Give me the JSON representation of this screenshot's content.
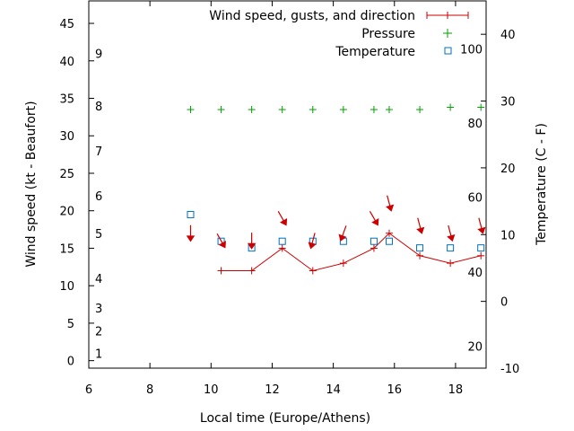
{
  "chart_data": {
    "type": "line",
    "xlabel": "Local time (Europe/Athens)",
    "ylabel": "Wind speed (kt - Beaufort)",
    "y2label": "Temperature (C - F)",
    "xlim": [
      6,
      19
    ],
    "ylim": [
      -1,
      48
    ],
    "y2lim": [
      -10,
      45
    ],
    "x_ticks": [
      "6",
      "8",
      "10",
      "12",
      "14",
      "16",
      "18"
    ],
    "y_ticks": [
      "0",
      "5",
      "10",
      "15",
      "20",
      "25",
      "30",
      "35",
      "40",
      "45"
    ],
    "y2_ticks": [
      "-10",
      "0",
      "10",
      "20",
      "30",
      "40"
    ],
    "beaufort_ticks": [
      {
        "label": "1",
        "at": 1
      },
      {
        "label": "2",
        "at": 4
      },
      {
        "label": "3",
        "at": 7
      },
      {
        "label": "4",
        "at": 11
      },
      {
        "label": "5",
        "at": 17
      },
      {
        "label": "6",
        "at": 22
      },
      {
        "label": "7",
        "at": 28
      },
      {
        "label": "8",
        "at": 34
      },
      {
        "label": "9",
        "at": 41
      }
    ],
    "fahrenheit_ticks": [
      {
        "label": "20",
        "at": -6.7
      },
      {
        "label": "40",
        "at": 4.4
      },
      {
        "label": "60",
        "at": 15.6
      },
      {
        "label": "80",
        "at": 26.7
      },
      {
        "label": "100",
        "at": 37.8
      }
    ],
    "legend_position": "top-right",
    "series": [
      {
        "name": "Wind speed, gusts, and direction",
        "axis": "y",
        "color": "#cc0000",
        "x": [
          10.33,
          11.33,
          12.33,
          13.33,
          14.33,
          15.33,
          15.83,
          16.83,
          17.83,
          18.83
        ],
        "values": [
          12,
          12,
          15,
          12,
          13,
          15,
          17,
          14,
          13,
          14
        ]
      },
      {
        "name": "Pressure",
        "axis": "y",
        "color": "#00a000",
        "x": [
          9.33,
          10.33,
          11.33,
          12.33,
          13.33,
          14.33,
          15.33,
          15.83,
          16.83,
          17.83,
          18.83
        ],
        "values": [
          33.5,
          33.5,
          33.5,
          33.5,
          33.5,
          33.5,
          33.5,
          33.5,
          33.5,
          33.8,
          33.8
        ]
      },
      {
        "name": "Temperature",
        "axis": "y2",
        "color": "#0070c0",
        "x": [
          9.33,
          10.33,
          11.33,
          12.33,
          13.33,
          14.33,
          15.33,
          15.83,
          16.83,
          17.83,
          18.83
        ],
        "values": [
          13,
          9,
          8,
          9,
          9,
          9,
          9,
          9,
          8,
          8,
          8
        ]
      }
    ],
    "wind_arrows": {
      "color": "#cc0000",
      "x": [
        9.33,
        10.33,
        11.33,
        12.33,
        13.33,
        14.33,
        15.33,
        15.83,
        16.83,
        17.83,
        18.83
      ],
      "y": [
        17,
        16,
        16,
        19,
        16,
        17,
        19,
        21,
        18,
        17,
        18
      ],
      "direction_deg": [
        0,
        330,
        0,
        330,
        15,
        20,
        330,
        345,
        345,
        345,
        345
      ]
    }
  }
}
